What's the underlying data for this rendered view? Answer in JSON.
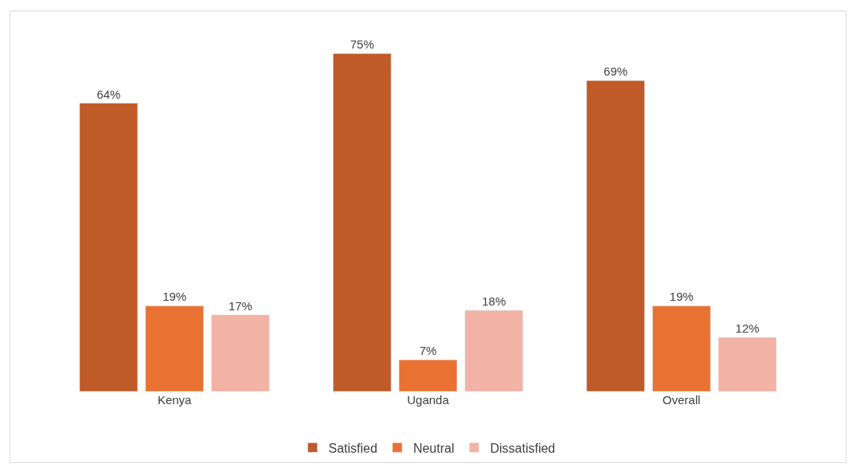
{
  "chart_data": {
    "type": "bar",
    "categories": [
      "Kenya",
      "Uganda",
      "Overall"
    ],
    "series": [
      {
        "name": "Satisfied",
        "color": "#c05a28",
        "values": [
          64,
          75,
          69
        ],
        "value_labels": [
          "64%",
          "75%",
          "69%"
        ]
      },
      {
        "name": "Neutral",
        "color": "#e97132",
        "values": [
          19,
          7,
          19
        ],
        "value_labels": [
          "19%",
          "7%",
          "19%"
        ]
      },
      {
        "name": "Dissatisfied",
        "color": "#f2b3a4",
        "values": [
          17,
          18,
          12
        ],
        "value_labels": [
          "17%",
          "18%",
          "12%"
        ]
      }
    ],
    "legend": "bottom"
  }
}
